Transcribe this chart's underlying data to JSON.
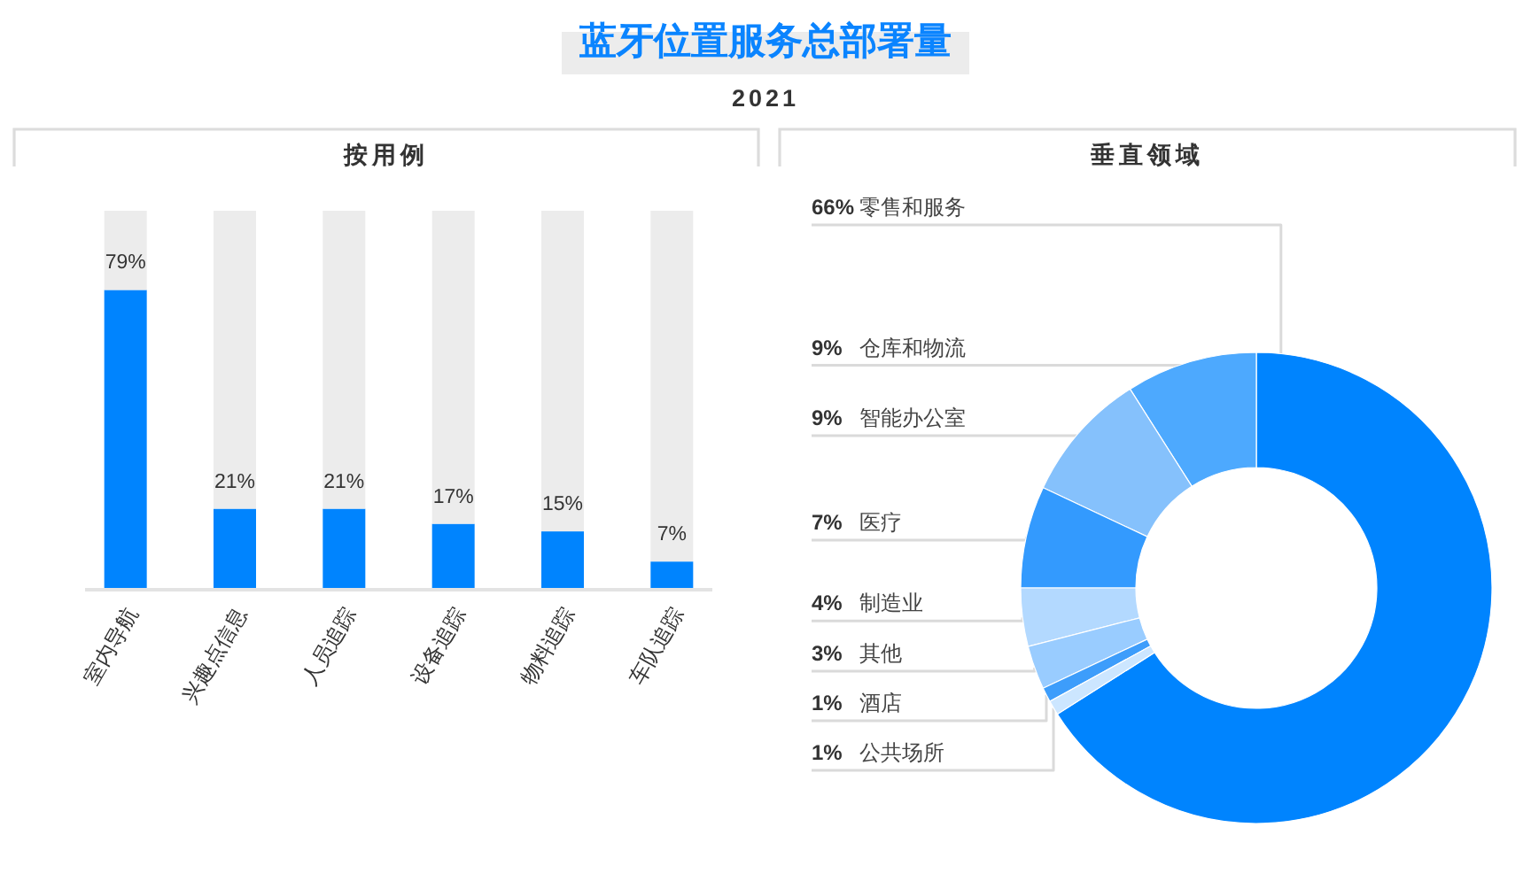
{
  "chart_data": [
    {
      "type": "other",
      "title": "蓝牙位置服务总部署量",
      "subtitle": "2021"
    },
    {
      "type": "bar",
      "title": "按用例",
      "categories": [
        "室内导航",
        "兴趣点信息",
        "人员追踪",
        "设备追踪",
        "物料追踪",
        "车队追踪"
      ],
      "stacked": true,
      "series": [
        {
          "color": "#0084fe",
          "values": [
            79,
            21,
            21,
            17,
            15,
            7
          ],
          "value_labels": [
            "79%",
            "21%",
            "21%",
            "17%",
            "15%",
            "7%"
          ]
        },
        {
          "color": "#ececec",
          "values": [
            21,
            79,
            79,
            83,
            85,
            93
          ]
        }
      ]
    },
    {
      "type": "donut",
      "title": "垂直领域",
      "categories": [
        "零售和服务",
        "仓库和物流",
        "智能办公室",
        "医疗",
        "制造业",
        "其他",
        "酒店",
        "公共场所"
      ],
      "values": [
        66,
        9,
        9,
        7,
        4,
        3,
        1,
        1
      ],
      "colors": [
        "#0084fe",
        "#4da9fe",
        "#85c1fc",
        "#339afe",
        "#b3d9ff",
        "#99ccff",
        "#3d9dfb",
        "#cce6ff"
      ],
      "value_labels": [
        "66%",
        "9%",
        "9%",
        "7%",
        "4%",
        "3%",
        "1%",
        "1%"
      ]
    }
  ]
}
